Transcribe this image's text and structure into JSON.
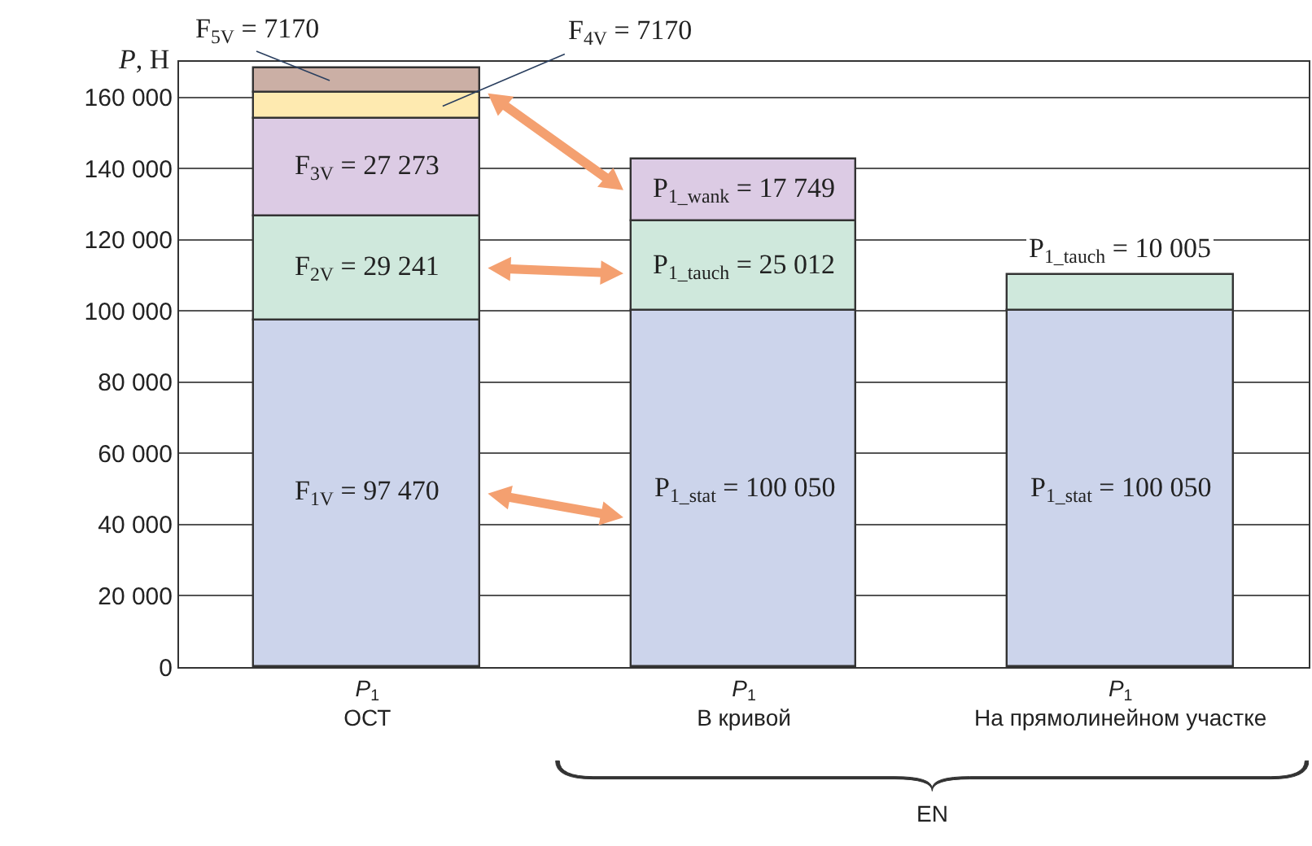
{
  "chart_data": {
    "type": "bar",
    "stacked": true,
    "ylabel": "P, Н",
    "categories": [
      "P$_{1}$\nОСТ",
      "P$_{1}$\nВ кривой",
      "P$_{1}$\nНа прямолинейном участке"
    ],
    "series": [
      {
        "color": "#ccd4eb",
        "values": [
          97470,
          100050,
          100050
        ],
        "value_labels": [
          "F$_{1V}$ = 97 470",
          "P$_{1_stat}$ = 100 050",
          "P$_{1_stat}$ = 100 050"
        ]
      },
      {
        "color": "#cfe8dc",
        "values": [
          29241,
          25012,
          10005
        ],
        "value_labels": [
          "F$_{2V}$ = 29 241",
          "P$_{1_tauch}$ = 25 012",
          "P$_{1_tauch}$ = 10 005"
        ]
      },
      {
        "color": "#dccbe4",
        "values": [
          27273,
          17749,
          null
        ],
        "value_labels": [
          "F$_{3V}$ = 27 273",
          "P$_{1_wank}$ = 17 749",
          null
        ]
      },
      {
        "color": "#feeab0",
        "values": [
          7170,
          null,
          null
        ],
        "value_labels": [
          "F$_{4V}$ = 7170",
          null,
          null
        ]
      },
      {
        "color": "#cbafa5",
        "values": [
          7170,
          null,
          null
        ],
        "value_labels": [
          "F$_{5V}$ = 7170",
          null,
          null
        ]
      }
    ],
    "ylim": [
      0,
      170000
    ],
    "yticks": [
      0,
      {
        "value": 20000,
        "label": "20 000"
      },
      {
        "value": 40000,
        "label": "40 000"
      },
      {
        "value": 60000,
        "label": "60 000"
      },
      {
        "value": 80000,
        "label": "80 000"
      },
      {
        "value": 100000,
        "label": "100 000"
      },
      {
        "value": 120000,
        "label": "120 000"
      },
      {
        "value": 140000,
        "label": "140 000"
      },
      {
        "value": 160000,
        "label": "160 000"
      }
    ],
    "grid": "y",
    "annotations": [
      "EN"
    ]
  }
}
